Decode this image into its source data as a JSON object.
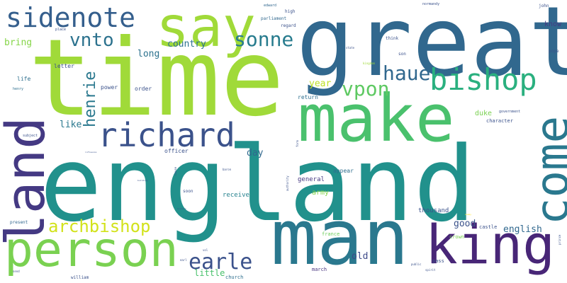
{
  "words": [
    {
      "text": "england",
      "color": "#21918c"
    },
    {
      "text": "time",
      "color": "#a0da39"
    },
    {
      "text": "great",
      "color": "#31688e"
    },
    {
      "text": "man",
      "color": "#2a788e"
    },
    {
      "text": "make",
      "color": "#4ac16d"
    },
    {
      "text": "land",
      "color": "#443983"
    },
    {
      "text": "say",
      "color": "#a0da39"
    },
    {
      "text": "king",
      "color": "#482677"
    },
    {
      "text": "person",
      "color": "#7ad151"
    },
    {
      "text": "come",
      "color": "#2a788e"
    },
    {
      "text": "sidenote",
      "color": "#355f8d"
    },
    {
      "text": "richard",
      "color": "#3b528b"
    },
    {
      "text": "bishop",
      "color": "#2ab07f"
    },
    {
      "text": "earle",
      "color": "#3b528b"
    },
    {
      "text": "archbishop",
      "color": "#d2e21b"
    },
    {
      "text": "sonne",
      "color": "#287c8e"
    },
    {
      "text": "haue",
      "color": "#31688e"
    },
    {
      "text": "henrie",
      "color": "#2a788e"
    },
    {
      "text": "vnto",
      "color": "#2c728e"
    },
    {
      "text": "vpon",
      "color": "#5ec962"
    },
    {
      "text": "country",
      "color": "#2c728e"
    },
    {
      "text": "long",
      "color": "#2c728e"
    },
    {
      "text": "bring",
      "color": "#86d549"
    },
    {
      "text": "like",
      "color": "#2a788e"
    },
    {
      "text": "year",
      "color": "#bddf26"
    },
    {
      "text": "day",
      "color": "#31688e"
    },
    {
      "text": "english",
      "color": "#31688e"
    },
    {
      "text": "good",
      "color": "#3b528b"
    },
    {
      "text": "old",
      "color": "#3e4a89"
    },
    {
      "text": "little",
      "color": "#4ac16d"
    },
    {
      "text": "duke",
      "color": "#7ad151"
    },
    {
      "text": "know",
      "color": "#443983"
    },
    {
      "text": "army",
      "color": "#84d44b"
    },
    {
      "text": "thousand",
      "color": "#3b528b"
    },
    {
      "text": "general",
      "color": "#453781"
    },
    {
      "text": "receive",
      "color": "#26828e"
    },
    {
      "text": "order",
      "color": "#3b528b"
    },
    {
      "text": "power",
      "color": "#3b528b"
    },
    {
      "text": "return",
      "color": "#2e6f8e"
    },
    {
      "text": "appear",
      "color": "#2e6e8e"
    },
    {
      "text": "officer",
      "color": "#3b528b"
    },
    {
      "text": "life",
      "color": "#2e6f8e"
    },
    {
      "text": "letter",
      "color": "#3b528b"
    },
    {
      "text": "character",
      "color": "#3b528b"
    },
    {
      "text": "castle",
      "color": "#3b528b"
    },
    {
      "text": "crown",
      "color": "#7ad151"
    },
    {
      "text": "pass",
      "color": "#3b528b"
    },
    {
      "text": "march",
      "color": "#46327e"
    },
    {
      "text": "church",
      "color": "#2e6f8e"
    },
    {
      "text": "france",
      "color": "#6ccd5a"
    },
    {
      "text": "william",
      "color": "#3b528b"
    },
    {
      "text": "soon",
      "color": "#3b528b"
    },
    {
      "text": "present",
      "color": "#31688e"
    },
    {
      "text": "high",
      "color": "#3b528b"
    },
    {
      "text": "parliament",
      "color": "#31688e"
    },
    {
      "text": "regard",
      "color": "#3b528b"
    },
    {
      "text": "think",
      "color": "#3b528b"
    },
    {
      "text": "son",
      "color": "#3b528b"
    },
    {
      "text": "john",
      "color": "#3b528b"
    },
    {
      "text": "pope",
      "color": "#3b528b"
    },
    {
      "text": "government",
      "color": "#3b528b"
    },
    {
      "text": "place",
      "color": "#3b528b"
    },
    {
      "text": "henry",
      "color": "#2e6f8e"
    },
    {
      "text": "subject",
      "color": "#3b528b"
    },
    {
      "text": "edward",
      "color": "#31688e"
    },
    {
      "text": "normandy",
      "color": "#3b528b"
    },
    {
      "text": "state",
      "color": "#3b528b"
    },
    {
      "text": "kingdom",
      "color": "#a0da39"
    },
    {
      "text": "baron",
      "color": "#3b528b"
    },
    {
      "text": "authority",
      "color": "#3b528b"
    },
    {
      "text": "cause",
      "color": "#3b528b"
    },
    {
      "text": "form",
      "color": "#3b528b"
    },
    {
      "text": "earl",
      "color": "#3b528b"
    },
    {
      "text": "send",
      "color": "#3b528b"
    },
    {
      "text": "vol",
      "color": "#3b528b"
    },
    {
      "text": "public",
      "color": "#3b528b"
    },
    {
      "text": "spirit",
      "color": "#3b528b"
    },
    {
      "text": "prince",
      "color": "#3b528b"
    },
    {
      "text": "enemy",
      "color": "#fde725"
    },
    {
      "text": "history",
      "color": "#3b528b"
    },
    {
      "text": "building",
      "color": "#3b528b"
    },
    {
      "text": "influence",
      "color": "#3b528b"
    }
  ]
}
